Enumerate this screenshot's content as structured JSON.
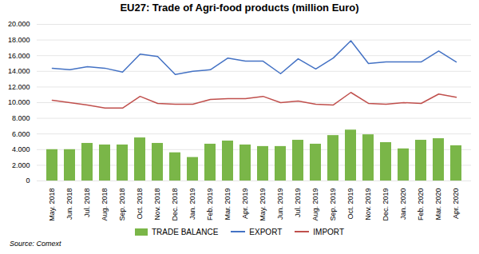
{
  "chart_data": {
    "type": "bar",
    "title": "EU27: Trade of Agri-food products (million  Euro)",
    "annotations": [
      "Source: Comext"
    ],
    "categories": [
      "May. 2018",
      "Jun. 2018",
      "Jul. 2018",
      "Aug. 2018",
      "Sep. 2018",
      "Oct. 2018",
      "Nov. 2018",
      "Dec. 2018",
      "Jan. 2019",
      "Feb. 2019",
      "Mar. 2019",
      "Apr. 2019",
      "May. 2019",
      "Jun. 2019",
      "Jul. 2019",
      "Aug. 2019",
      "Sep. 2019",
      "Oct. 2019",
      "Nov. 2019",
      "Dec. 2019",
      "Jan. 2020",
      "Feb. 2020",
      "Mar. 2020",
      "Apr. 2020"
    ],
    "series": [
      {
        "name": "TRADE BALANCE",
        "type": "bar",
        "color": "#7ab648",
        "values": [
          4000,
          4000,
          4800,
          4600,
          4600,
          5500,
          4800,
          3600,
          3000,
          4700,
          5100,
          4600,
          4400,
          4400,
          5200,
          4700,
          5800,
          6500,
          5900,
          4900,
          4100,
          5200,
          5400,
          4500
        ]
      },
      {
        "name": "EXPORT",
        "type": "line",
        "color": "#4472c4",
        "values": [
          14400,
          14200,
          14600,
          14400,
          13900,
          16200,
          15900,
          13600,
          14000,
          14200,
          15700,
          15300,
          15300,
          13700,
          15600,
          14300,
          15700,
          17900,
          15000,
          15200,
          15200,
          15200,
          16600,
          15200
        ]
      },
      {
        "name": "IMPORT",
        "type": "line",
        "color": "#c0504d",
        "values": [
          10300,
          10000,
          9700,
          9300,
          9300,
          10800,
          9900,
          9800,
          9800,
          10400,
          10500,
          10500,
          10800,
          10000,
          10200,
          9800,
          9700,
          11300,
          9900,
          9800,
          10000,
          9900,
          11100,
          10700
        ]
      }
    ],
    "ylim": [
      0,
      20000
    ],
    "yticks": [
      0,
      {
        "value": 2000,
        "label": "2.000"
      },
      {
        "value": 4000,
        "label": "4.000"
      },
      {
        "value": 6000,
        "label": "6.000"
      },
      {
        "value": 8000,
        "label": "8.000"
      },
      {
        "value": 10000,
        "label": "10.000"
      },
      {
        "value": 12000,
        "label": "12.000"
      },
      {
        "value": 14000,
        "label": "14.000"
      },
      {
        "value": 16000,
        "label": "16.000"
      },
      {
        "value": 18000,
        "label": "18.000"
      },
      {
        "value": 20000,
        "label": "20.000"
      }
    ],
    "grid": true,
    "legend": "bottom"
  }
}
